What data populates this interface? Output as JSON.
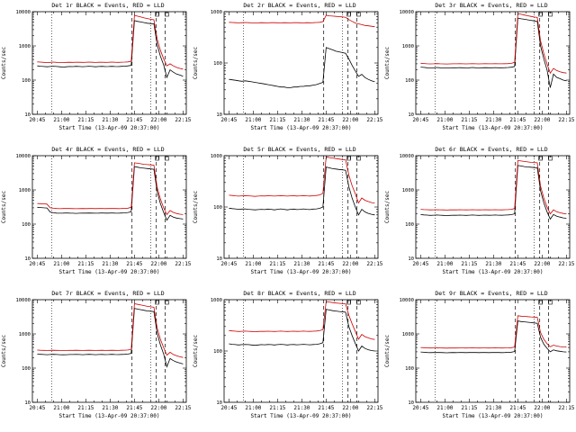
{
  "page": {
    "background": "#ffffff"
  },
  "chart_shared": {
    "type": "line",
    "xlabel": "Start Time (13-Apr-09 20:37:00)",
    "ylabel": "Counts/sec",
    "x_tick_labels": [
      "20:45",
      "21:00",
      "21:15",
      "21:30",
      "21:45",
      "22:00",
      "22:15"
    ],
    "x_tick_minutes": [
      0,
      15,
      30,
      45,
      60,
      75,
      90
    ],
    "xlim": [
      -3,
      92
    ],
    "y_scale": "log",
    "legend": {
      "black": "Events",
      "red": "LLD"
    },
    "colors": {
      "events": "#000000",
      "lld": "#cc0000"
    },
    "vlines": {
      "dotted": [
        9,
        70
      ],
      "dashed": [
        58.5,
        73.5,
        79
      ]
    },
    "top_squares": [
      74,
      80
    ],
    "x_minutes": [
      0,
      2,
      4,
      6,
      8,
      10,
      12,
      14,
      16,
      18,
      20,
      22,
      24,
      26,
      28,
      30,
      32,
      34,
      36,
      38,
      40,
      42,
      44,
      46,
      48,
      50,
      52,
      54,
      56,
      58,
      60,
      62,
      64,
      66,
      68,
      70,
      72,
      74,
      76,
      78,
      80,
      82,
      84,
      86,
      88,
      90
    ]
  },
  "chart_data": [
    {
      "title": "Det 1r BLACK = Events, RED = LLD",
      "ylim": [
        10,
        10000
      ],
      "y_ticks": [
        10,
        100,
        1000,
        10000
      ],
      "series": {
        "events": [
          260,
          255,
          250,
          245,
          250,
          255,
          250,
          245,
          240,
          245,
          250,
          248,
          252,
          250,
          246,
          250,
          255,
          250,
          245,
          250,
          252,
          248,
          250,
          253,
          250,
          248,
          252,
          255,
          260,
          270,
          5500,
          5200,
          5000,
          4800,
          4600,
          4500,
          4400,
          1100,
          500,
          280,
          120,
          200,
          170,
          150,
          140,
          130
        ],
        "lld": [
          340,
          335,
          330,
          325,
          330,
          335,
          330,
          328,
          325,
          330,
          332,
          330,
          334,
          332,
          330,
          332,
          336,
          332,
          328,
          332,
          334,
          330,
          332,
          335,
          332,
          330,
          334,
          336,
          340,
          360,
          7800,
          7400,
          7000,
          6600,
          6300,
          6000,
          5800,
          1600,
          750,
          420,
          260,
          300,
          260,
          235,
          220,
          210
        ]
      }
    },
    {
      "title": "Det 2r BLACK = Events, RED = LLD",
      "ylim": [
        10,
        1000
      ],
      "y_ticks": [
        10,
        100,
        1000
      ],
      "series": {
        "events": [
          48,
          47,
          46,
          45,
          44,
          45,
          44,
          43,
          42,
          41,
          40,
          39,
          38,
          37,
          36,
          35,
          34,
          34,
          33,
          33,
          34,
          34,
          35,
          35,
          36,
          36,
          37,
          38,
          40,
          42,
          200,
          190,
          180,
          170,
          165,
          160,
          155,
          120,
          90,
          70,
          55,
          60,
          52,
          48,
          45,
          43
        ],
        "lld": [
          620,
          615,
          610,
          605,
          610,
          615,
          610,
          605,
          600,
          605,
          610,
          608,
          605,
          610,
          612,
          608,
          605,
          610,
          608,
          605,
          610,
          612,
          608,
          605,
          610,
          608,
          612,
          615,
          620,
          640,
          850,
          830,
          820,
          810,
          800,
          790,
          780,
          700,
          650,
          600,
          580,
          560,
          540,
          530,
          520,
          510
        ]
      }
    },
    {
      "title": "Det 3r BLACK = Events, RED = LLD",
      "ylim": [
        10,
        10000
      ],
      "y_ticks": [
        10,
        100,
        1000,
        10000
      ],
      "series": {
        "events": [
          240,
          235,
          230,
          228,
          230,
          233,
          230,
          228,
          225,
          228,
          230,
          229,
          231,
          230,
          228,
          230,
          233,
          230,
          228,
          230,
          231,
          229,
          230,
          232,
          230,
          229,
          231,
          233,
          238,
          250,
          6500,
          6200,
          6000,
          5800,
          5600,
          5400,
          5200,
          1000,
          420,
          200,
          60,
          150,
          120,
          110,
          100,
          95
        ],
        "lld": [
          310,
          305,
          300,
          298,
          300,
          303,
          300,
          298,
          296,
          298,
          300,
          299,
          301,
          300,
          298,
          300,
          302,
          300,
          298,
          300,
          301,
          299,
          300,
          302,
          300,
          299,
          301,
          303,
          308,
          330,
          8800,
          8400,
          8000,
          7600,
          7300,
          7000,
          6800,
          1400,
          600,
          300,
          160,
          220,
          190,
          175,
          165,
          160
        ]
      }
    },
    {
      "title": "Det 4r BLACK = Events, RED = LLD",
      "ylim": [
        10,
        10000
      ],
      "y_ticks": [
        10,
        100,
        1000,
        10000
      ],
      "series": {
        "events": [
          310,
          305,
          300,
          295,
          225,
          215,
          210,
          208,
          210,
          212,
          210,
          208,
          206,
          208,
          210,
          209,
          211,
          210,
          208,
          210,
          212,
          209,
          210,
          212,
          210,
          208,
          211,
          213,
          218,
          230,
          4800,
          4600,
          4400,
          4300,
          4200,
          4100,
          4000,
          900,
          400,
          220,
          130,
          180,
          160,
          150,
          145,
          140
        ],
        "lld": [
          400,
          395,
          390,
          385,
          300,
          290,
          285,
          282,
          285,
          287,
          285,
          283,
          281,
          283,
          285,
          284,
          286,
          285,
          283,
          285,
          287,
          284,
          285,
          287,
          285,
          283,
          286,
          288,
          293,
          310,
          6200,
          6000,
          5800,
          5600,
          5500,
          5400,
          5300,
          1200,
          550,
          300,
          190,
          250,
          220,
          205,
          195,
          190
        ]
      }
    },
    {
      "title": "Det 5r BLACK = Events, RED = LLD",
      "ylim": [
        10,
        1000
      ],
      "y_ticks": [
        10,
        100,
        1000
      ],
      "series": {
        "events": [
          95,
          93,
          92,
          90,
          91,
          92,
          90,
          89,
          88,
          89,
          90,
          89,
          91,
          90,
          88,
          90,
          92,
          90,
          88,
          90,
          91,
          89,
          90,
          92,
          90,
          89,
          91,
          92,
          94,
          100,
          600,
          580,
          560,
          550,
          540,
          530,
          520,
          250,
          150,
          100,
          70,
          90,
          80,
          75,
          72,
          70
        ],
        "lld": [
          170,
          168,
          165,
          163,
          165,
          167,
          165,
          163,
          161,
          163,
          165,
          164,
          166,
          165,
          163,
          165,
          167,
          165,
          163,
          165,
          166,
          164,
          165,
          167,
          165,
          164,
          166,
          168,
          172,
          185,
          950,
          920,
          900,
          880,
          860,
          840,
          830,
          420,
          260,
          180,
          120,
          150,
          135,
          128,
          122,
          120
        ]
      }
    },
    {
      "title": "Det 6r BLACK = Events, RED = LLD",
      "ylim": [
        10,
        10000
      ],
      "y_ticks": [
        10,
        100,
        1000,
        10000
      ],
      "series": {
        "events": [
          190,
          186,
          183,
          180,
          182,
          184,
          182,
          180,
          178,
          180,
          182,
          181,
          183,
          182,
          180,
          182,
          184,
          182,
          180,
          182,
          183,
          181,
          182,
          184,
          182,
          181,
          183,
          185,
          189,
          200,
          5200,
          5000,
          4800,
          4700,
          4600,
          4500,
          4400,
          950,
          420,
          230,
          140,
          190,
          170,
          160,
          152,
          148
        ],
        "lld": [
          270,
          266,
          263,
          260,
          262,
          264,
          262,
          260,
          258,
          260,
          262,
          261,
          263,
          262,
          260,
          262,
          264,
          262,
          260,
          262,
          263,
          261,
          262,
          264,
          262,
          261,
          263,
          265,
          270,
          285,
          7200,
          7000,
          6800,
          6600,
          6400,
          6300,
          6200,
          1300,
          580,
          320,
          200,
          260,
          230,
          215,
          205,
          200
        ]
      }
    },
    {
      "title": "Det 7r BLACK = Events, RED = LLD",
      "ylim": [
        10,
        10000
      ],
      "y_ticks": [
        10,
        100,
        1000,
        10000
      ],
      "series": {
        "events": [
          255,
          252,
          250,
          247,
          250,
          252,
          250,
          247,
          245,
          247,
          250,
          249,
          251,
          250,
          247,
          250,
          253,
          250,
          247,
          250,
          251,
          248,
          250,
          252,
          250,
          248,
          251,
          253,
          257,
          268,
          5600,
          5300,
          5100,
          4900,
          4700,
          4600,
          4500,
          1050,
          480,
          260,
          110,
          190,
          165,
          150,
          140,
          132
        ],
        "lld": [
          335,
          332,
          330,
          327,
          330,
          332,
          330,
          327,
          325,
          327,
          330,
          329,
          331,
          330,
          327,
          330,
          332,
          330,
          327,
          330,
          331,
          328,
          330,
          332,
          330,
          328,
          331,
          333,
          338,
          355,
          7600,
          7300,
          7000,
          6700,
          6400,
          6200,
          6000,
          1500,
          700,
          400,
          240,
          290,
          250,
          230,
          215,
          205
        ]
      }
    },
    {
      "title": "Det 8r BLACK = Events, RED = LLD",
      "ylim": [
        10,
        1000
      ],
      "y_ticks": [
        10,
        100,
        1000
      ],
      "series": {
        "events": [
          138,
          135,
          133,
          131,
          133,
          134,
          133,
          131,
          129,
          131,
          133,
          132,
          134,
          133,
          131,
          133,
          135,
          133,
          131,
          133,
          134,
          132,
          133,
          135,
          133,
          132,
          134,
          135,
          138,
          145,
          650,
          630,
          610,
          600,
          590,
          580,
          570,
          300,
          200,
          140,
          100,
          125,
          112,
          106,
          102,
          100
        ],
        "lld": [
          250,
          246,
          243,
          240,
          242,
          244,
          242,
          240,
          238,
          240,
          242,
          241,
          243,
          242,
          240,
          242,
          244,
          242,
          240,
          242,
          243,
          241,
          242,
          244,
          242,
          241,
          243,
          245,
          249,
          262,
          920,
          900,
          880,
          860,
          850,
          840,
          830,
          500,
          340,
          240,
          170,
          210,
          190,
          180,
          172,
          168
        ]
      }
    },
    {
      "title": "Det 9r BLACK = Events, RED = LLD",
      "ylim": [
        10,
        10000
      ],
      "y_ticks": [
        10,
        100,
        1000,
        10000
      ],
      "series": {
        "events": [
          295,
          290,
          286,
          283,
          285,
          287,
          285,
          283,
          280,
          283,
          285,
          284,
          286,
          285,
          283,
          285,
          287,
          285,
          283,
          285,
          286,
          284,
          285,
          287,
          285,
          284,
          286,
          288,
          292,
          305,
          2400,
          2300,
          2250,
          2200,
          2150,
          2100,
          2050,
          800,
          500,
          380,
          300,
          340,
          320,
          310,
          300,
          295
        ],
        "lld": [
          400,
          395,
          390,
          386,
          388,
          390,
          388,
          386,
          383,
          386,
          388,
          387,
          389,
          388,
          386,
          388,
          390,
          388,
          386,
          388,
          389,
          387,
          388,
          390,
          388,
          387,
          389,
          391,
          396,
          412,
          3400,
          3300,
          3250,
          3200,
          3150,
          3100,
          3050,
          1100,
          700,
          520,
          420,
          470,
          440,
          425,
          415,
          410
        ]
      }
    }
  ]
}
